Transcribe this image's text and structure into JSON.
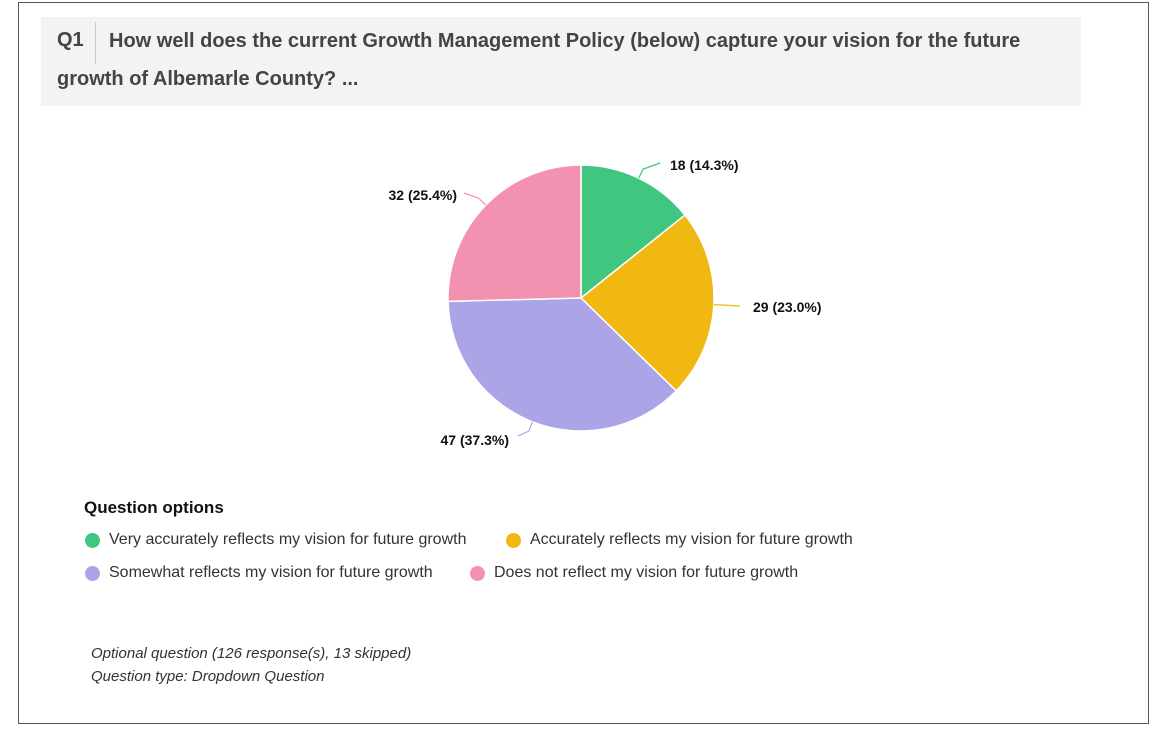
{
  "question": {
    "number": "Q1",
    "text": "How well does the current Growth Management Policy (below) capture your vision for the future growth of Albemarle County?  ..."
  },
  "chart_data": {
    "type": "pie",
    "slices": [
      {
        "label": "Very accurately reflects my vision for future growth",
        "value": 18,
        "percent": 14.3,
        "data_label": "18 (14.3%)",
        "color": "#41c67f"
      },
      {
        "label": "Accurately reflects my vision for future growth",
        "value": 29,
        "percent": 23.0,
        "data_label": "29 (23.0%)",
        "color": "#f1b811"
      },
      {
        "label": "Somewhat reflects my vision for future growth",
        "value": 47,
        "percent": 37.3,
        "data_label": "47 (37.3%)",
        "color": "#aba4e6"
      },
      {
        "label": "Does not reflect my vision for future growth",
        "value": 32,
        "percent": 25.4,
        "data_label": "32 (25.4%)",
        "color": "#f391b1"
      }
    ],
    "start_angle_deg": 0,
    "direction": "clockwise",
    "legend_title": "Question options",
    "legend_placement": "bottom-left"
  },
  "footer": {
    "responses": "Optional question (126 response(s), 13 skipped)",
    "type": "Question type: Dropdown Question"
  }
}
